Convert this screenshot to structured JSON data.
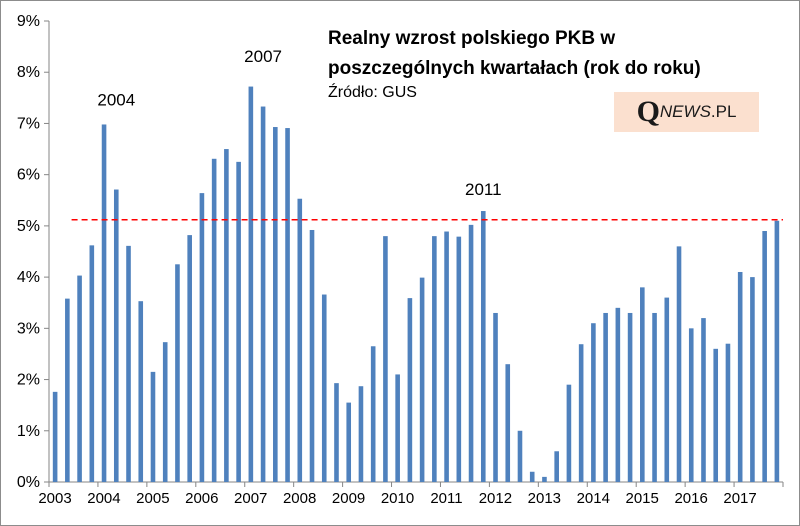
{
  "chart_data": {
    "type": "bar",
    "title_line_1": "Realny wzrost polskiego PKB w",
    "title_line_2": "poszczególnych kwartałach (rok do roku)",
    "source": "Źródło: GUS",
    "x_tick_labels": [
      "2003",
      "2004",
      "2005",
      "2006",
      "2007",
      "2008",
      "2009",
      "2010",
      "2011",
      "2012",
      "2013",
      "2014",
      "2015",
      "2016",
      "2017"
    ],
    "y_tick_labels": [
      "0%",
      "1%",
      "2%",
      "3%",
      "4%",
      "5%",
      "6%",
      "7%",
      "8%",
      "9%"
    ],
    "ylim": [
      0,
      9
    ],
    "grid": false,
    "bar_color": "#4f81bd",
    "reference_line": {
      "value": 5.12,
      "color": "#ff0000",
      "style": "dashed"
    },
    "annotations": [
      {
        "text": "2004",
        "x_index": 5,
        "y": 7.35
      },
      {
        "text": "2007",
        "x_index": 17,
        "y": 8.2
      },
      {
        "text": "2011",
        "x_index": 35,
        "y": 5.6
      }
    ],
    "values": [
      1.76,
      3.58,
      4.03,
      4.62,
      6.98,
      5.71,
      4.61,
      3.53,
      2.15,
      2.73,
      4.25,
      4.82,
      5.64,
      6.31,
      6.5,
      6.25,
      7.72,
      7.33,
      6.93,
      6.91,
      5.53,
      4.92,
      3.66,
      1.93,
      1.55,
      1.87,
      2.65,
      4.8,
      2.1,
      3.59,
      3.99,
      4.8,
      4.89,
      4.79,
      5.02,
      5.29,
      3.3,
      2.3,
      1.0,
      0.2,
      0.1,
      0.6,
      1.9,
      2.69,
      3.1,
      3.3,
      3.4,
      3.3,
      3.8,
      3.3,
      3.6,
      4.6,
      3.0,
      3.2,
      2.6,
      2.7,
      4.1,
      4.0,
      4.9,
      5.1
    ]
  },
  "logo": {
    "q": "Q",
    "news": "NEWS",
    "pl": ".PL"
  }
}
